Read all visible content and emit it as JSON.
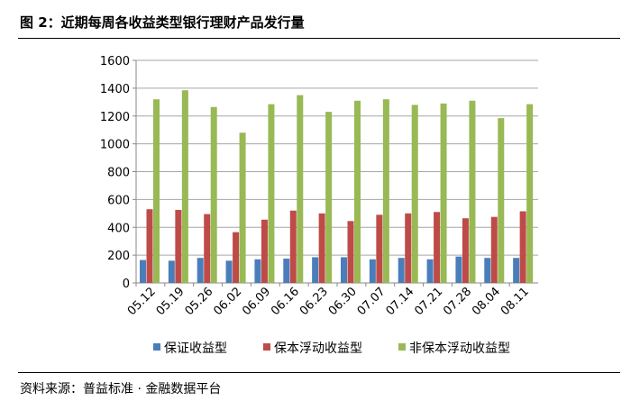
{
  "header": {
    "title": "图 2：近期每周各收益类型银行理财产品发行量"
  },
  "footer": {
    "source": "资料来源：普益标准 · 金融数据平台"
  },
  "chart_data": {
    "type": "bar",
    "title": "",
    "xlabel": "",
    "ylabel": "",
    "ylim": [
      0,
      1600
    ],
    "yticks": [
      0,
      200,
      400,
      600,
      800,
      1000,
      1200,
      1400,
      1600
    ],
    "grid": true,
    "legend_position": "bottom",
    "categories": [
      "05.12",
      "05.19",
      "05.26",
      "06.02",
      "06.09",
      "06.16",
      "06.23",
      "06.30",
      "07.07",
      "07.14",
      "07.21",
      "07.28",
      "08.04",
      "08.11"
    ],
    "series": [
      {
        "name": "保证收益型",
        "color": "#4a7ebb",
        "values": [
          165,
          160,
          180,
          160,
          170,
          175,
          185,
          185,
          170,
          180,
          170,
          190,
          180,
          180
        ]
      },
      {
        "name": "保本浮动收益型",
        "color": "#be4b48",
        "values": [
          530,
          525,
          495,
          365,
          455,
          520,
          500,
          445,
          490,
          500,
          510,
          465,
          475,
          515
        ]
      },
      {
        "name": "非保本浮动收益型",
        "color": "#98b954",
        "values": [
          1320,
          1385,
          1265,
          1080,
          1285,
          1350,
          1230,
          1310,
          1320,
          1280,
          1290,
          1310,
          1185,
          1285
        ]
      }
    ]
  }
}
